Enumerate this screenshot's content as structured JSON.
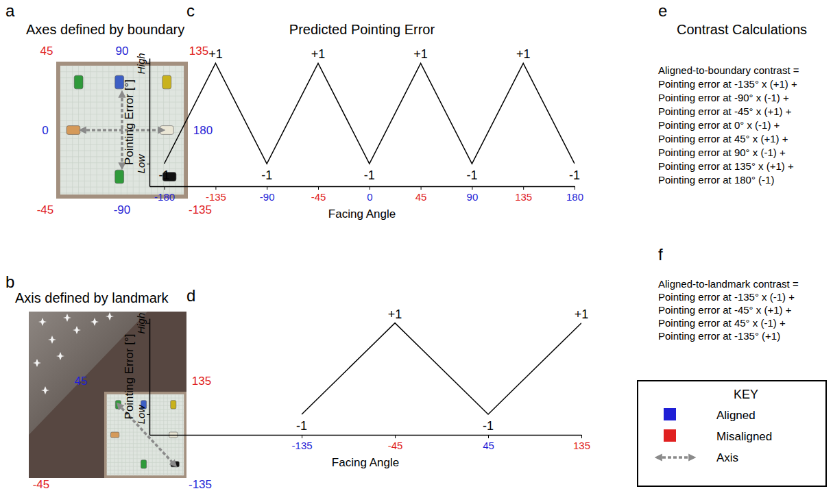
{
  "chart_data": [
    {
      "type": "line",
      "letter": "c",
      "title": "Predicted Pointing Error",
      "x_label": "Facing Angle",
      "y_label": "Pointing Error [°]",
      "x": [
        -180,
        -135,
        -90,
        -45,
        0,
        45,
        90,
        135,
        180
      ],
      "values": [
        -1,
        1,
        -1,
        1,
        -1,
        1,
        -1,
        1,
        -1
      ],
      "value_labels": [
        "-1",
        "+1",
        "-1",
        "+1",
        "-1",
        "+1",
        "-1",
        "+1",
        "-1"
      ],
      "data_labels": true,
      "color": "#000000",
      "xlim": [
        -193,
        180
      ],
      "xticks": [
        -180,
        -135,
        -90,
        -45,
        0,
        45,
        90,
        135,
        180
      ],
      "ylim": [
        -1.45,
        1.1
      ],
      "yticks": [
        {
          "value": -1,
          "label": "Low"
        },
        {
          "value": 1,
          "label": "High"
        }
      ]
    },
    {
      "type": "line",
      "letter": "d",
      "x_label": "Facing Angle",
      "y_label": "Pointing Error [°]",
      "x": [
        -135,
        -45,
        45,
        135
      ],
      "values": [
        -1,
        1,
        -1,
        1
      ],
      "value_labels": [
        "-1",
        "+1",
        "-1",
        "+1"
      ],
      "data_labels": true,
      "color": "#000000",
      "xlim": [
        -282,
        135
      ],
      "xticks": [
        -135,
        -45,
        45,
        135
      ],
      "ylim": [
        -1.45,
        1.1
      ],
      "yticks": [
        {
          "value": -1,
          "label": "Low"
        },
        {
          "value": 1,
          "label": "High"
        }
      ]
    }
  ],
  "panel_a": {
    "letter": "a",
    "title": "Axes defined by boundary",
    "angle_labels": [
      {
        "text": "45",
        "color": "#e02020"
      },
      {
        "text": "90",
        "color": "#1f1fd6"
      },
      {
        "text": "135",
        "color": "#e02020"
      },
      {
        "text": "0",
        "color": "#1f1fd6"
      },
      {
        "text": "180",
        "color": "#1f1fd6"
      },
      {
        "text": "-45",
        "color": "#e02020"
      },
      {
        "text": "-90",
        "color": "#1f1fd6"
      },
      {
        "text": "-135",
        "color": "#e02020"
      }
    ]
  },
  "panel_b": {
    "letter": "b",
    "title": "Axis defined by landmark",
    "angle_labels": [
      {
        "text": "45",
        "color": "#1f1fd6"
      },
      {
        "text": "135",
        "color": "#e02020"
      },
      {
        "text": "-45",
        "color": "#e02020"
      },
      {
        "text": "-135",
        "color": "#1f1fd6"
      }
    ]
  },
  "panel_e": {
    "letter": "e",
    "title": "Contrast Calculations",
    "lines": [
      "Aligned-to-boundary contrast =",
      "Pointing error at -135° x (+1) +",
      "Pointing error at -90° x (-1) +",
      "Pointing error at -45° x (+1) +",
      "Pointing error at 0° x (-1) +",
      "Pointing error at 45° x (+1) +",
      "Pointing error at 90° x (-1) +",
      "Pointing error at 135° x (+1) +",
      "Pointing error at 180° (-1)"
    ]
  },
  "panel_f": {
    "letter": "f",
    "lines": [
      "Aligned-to-landmark contrast =",
      "Pointing error at -135° x (-1) +",
      "Pointing error at -45° x (+1) +",
      "Pointing error at 45° x (-1) +",
      "Pointing error at -135° (+1)"
    ]
  },
  "key": {
    "title": "KEY",
    "entries": [
      {
        "label": "Aligned",
        "color": "#1f1fd6"
      },
      {
        "label": "Misaligned",
        "color": "#e02020"
      },
      {
        "label": "Axis"
      }
    ]
  }
}
